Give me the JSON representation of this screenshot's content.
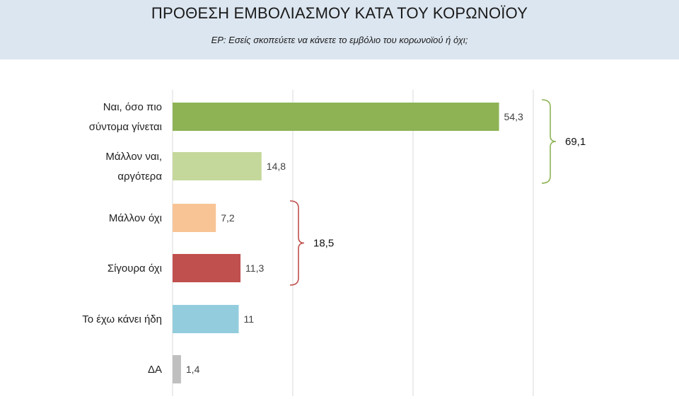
{
  "header": {
    "title": "ΠΡΟΘΕΣΗ ΕΜΒΟΛΙΑΣΜΟΥ ΚΑΤΑ ΤΟΥ ΚΟΡΩΝΟΪΟΥ",
    "subtitle": "ΕΡ:  Εσείς σκοπεύετε να κάνετε το εμβόλιο του κορωνοϊού ή όχι;"
  },
  "chart_data": {
    "type": "bar",
    "orientation": "horizontal",
    "categories": [
      [
        "Ναι, όσο πιο",
        "σύντομα γίνεται"
      ],
      [
        "Μάλλον ναι,",
        "αργότερα"
      ],
      [
        "Μάλλον όχι"
      ],
      [
        "Σίγουρα όχι"
      ],
      [
        "Το έχω κάνει ήδη"
      ],
      [
        "ΔΑ"
      ]
    ],
    "values": [
      54.3,
      14.8,
      7.2,
      11.3,
      11,
      1.4
    ],
    "value_labels": [
      "54,3",
      "14,8",
      "7,2",
      "11,3",
      "11",
      "1,4"
    ],
    "colors": [
      "#8db355",
      "#c5d89b",
      "#f8c495",
      "#c0504d",
      "#93cddd",
      "#bfbfbf"
    ],
    "xlim": [
      0,
      60
    ],
    "grid": true,
    "groups": [
      {
        "rows": [
          0,
          1
        ],
        "total_label": "69,1",
        "color": "#8db355"
      },
      {
        "rows": [
          2,
          3
        ],
        "total_label": "18,5",
        "color": "#c0504d"
      }
    ]
  }
}
